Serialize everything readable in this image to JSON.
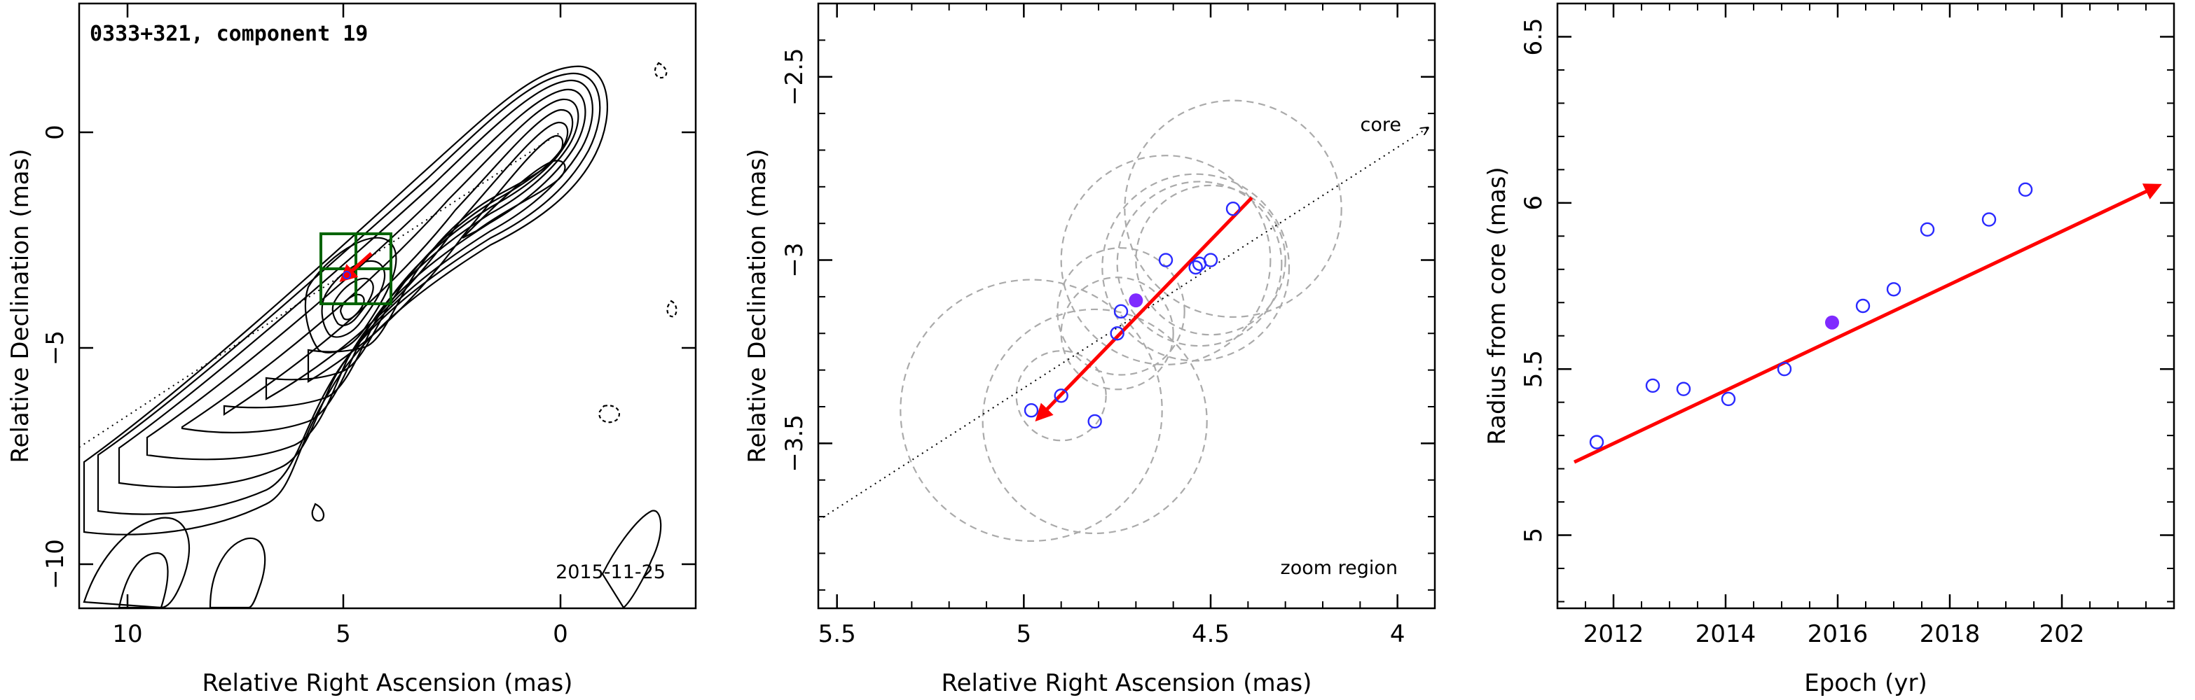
{
  "panels": [
    {
      "title": "0333+321, component 19",
      "date": "2015-11-25",
      "xlabel": "Relative Right Ascension (mas)",
      "ylabel": "Relative Declination (mas)",
      "xticks": [
        "10",
        "5",
        "0"
      ],
      "yticks": [
        "0",
        "−5",
        "−10"
      ]
    },
    {
      "xlabel": "Relative Right Ascension (mas)",
      "ylabel": "Relative Declination (mas)",
      "xticks": [
        "5.5",
        "5",
        "4.5",
        "4"
      ],
      "yticks": [
        "−2.5",
        "−3",
        "−3.5"
      ],
      "core_label": "core",
      "zoom_label": "zoom region"
    },
    {
      "xlabel": "Epoch (yr)",
      "ylabel": "Radius from core (mas)",
      "xticks": [
        "2012",
        "2014",
        "2016",
        "2018",
        "202"
      ],
      "yticks": [
        "5",
        "5.5",
        "6",
        "6.5"
      ]
    }
  ],
  "chart_data": [
    {
      "type": "contour",
      "title": "0333+321, component 19",
      "xlabel": "Relative Right Ascension (mas)",
      "ylabel": "Relative Declination (mas)",
      "xlim": [
        11,
        -3
      ],
      "ylim": [
        -11,
        3
      ],
      "jet_axis_line": [
        [
          11,
          -7.3
        ],
        [
          0,
          0
        ]
      ],
      "zoom_box": {
        "x": [
          3.9,
          5.5
        ],
        "y": [
          -3.9,
          -2.3
        ]
      },
      "component_position": [
        4.7,
        -3.12
      ]
    },
    {
      "type": "scatter",
      "xlabel": "Relative Right Ascension (mas)",
      "ylabel": "Relative Declination (mas)",
      "xlim": [
        5.55,
        3.9
      ],
      "ylim": [
        -3.95,
        -2.3
      ],
      "points": [
        {
          "x": 4.44,
          "y": -2.86
        },
        {
          "x": 4.62,
          "y": -3.0
        },
        {
          "x": 4.54,
          "y": -3.02
        },
        {
          "x": 4.53,
          "y": -3.01
        },
        {
          "x": 4.5,
          "y": -3.0
        },
        {
          "x": 4.74,
          "y": -3.14
        },
        {
          "x": 4.75,
          "y": -3.2
        },
        {
          "x": 4.9,
          "y": -3.37
        },
        {
          "x": 4.98,
          "y": -3.41
        },
        {
          "x": 4.81,
          "y": -3.44
        }
      ],
      "highlight_point": {
        "x": 4.7,
        "y": -3.11
      },
      "velocity_arrow": {
        "from": [
          4.39,
          -2.83
        ],
        "to": [
          4.96,
          -3.43
        ]
      },
      "circle_radii": [
        0.29,
        0.28,
        0.25,
        0.22,
        0.2,
        0.17,
        0.15,
        0.12,
        0.35,
        0.3
      ],
      "jet_axis_line": {
        "from": [
          5.55,
          -3.71
        ],
        "to": [
          3.92,
          -2.64
        ]
      },
      "annotations": [
        "core",
        "zoom region"
      ]
    },
    {
      "type": "scatter",
      "xlabel": "Epoch (yr)",
      "ylabel": "Radius from core (mas)",
      "xlim": [
        2011,
        2022
      ],
      "ylim": [
        4.78,
        6.6
      ],
      "points": [
        {
          "x": 2011.7,
          "y": 5.28
        },
        {
          "x": 2012.7,
          "y": 5.45
        },
        {
          "x": 2013.25,
          "y": 5.44
        },
        {
          "x": 2014.05,
          "y": 5.41
        },
        {
          "x": 2015.05,
          "y": 5.5
        },
        {
          "x": 2016.45,
          "y": 5.69
        },
        {
          "x": 2017.0,
          "y": 5.74
        },
        {
          "x": 2017.6,
          "y": 5.92
        },
        {
          "x": 2018.7,
          "y": 5.95
        },
        {
          "x": 2019.35,
          "y": 6.04
        }
      ],
      "highlight_point": {
        "x": 2015.9,
        "y": 5.64
      },
      "fit_line": {
        "from": [
          2011.3,
          5.22
        ],
        "to": [
          2021.7,
          6.05
        ]
      }
    }
  ],
  "colors": {
    "points": "#2a2aff",
    "highlight": "#7f2aff",
    "arrow": "#ff0000",
    "box": "#006400",
    "circles": "#aaaaaa"
  }
}
